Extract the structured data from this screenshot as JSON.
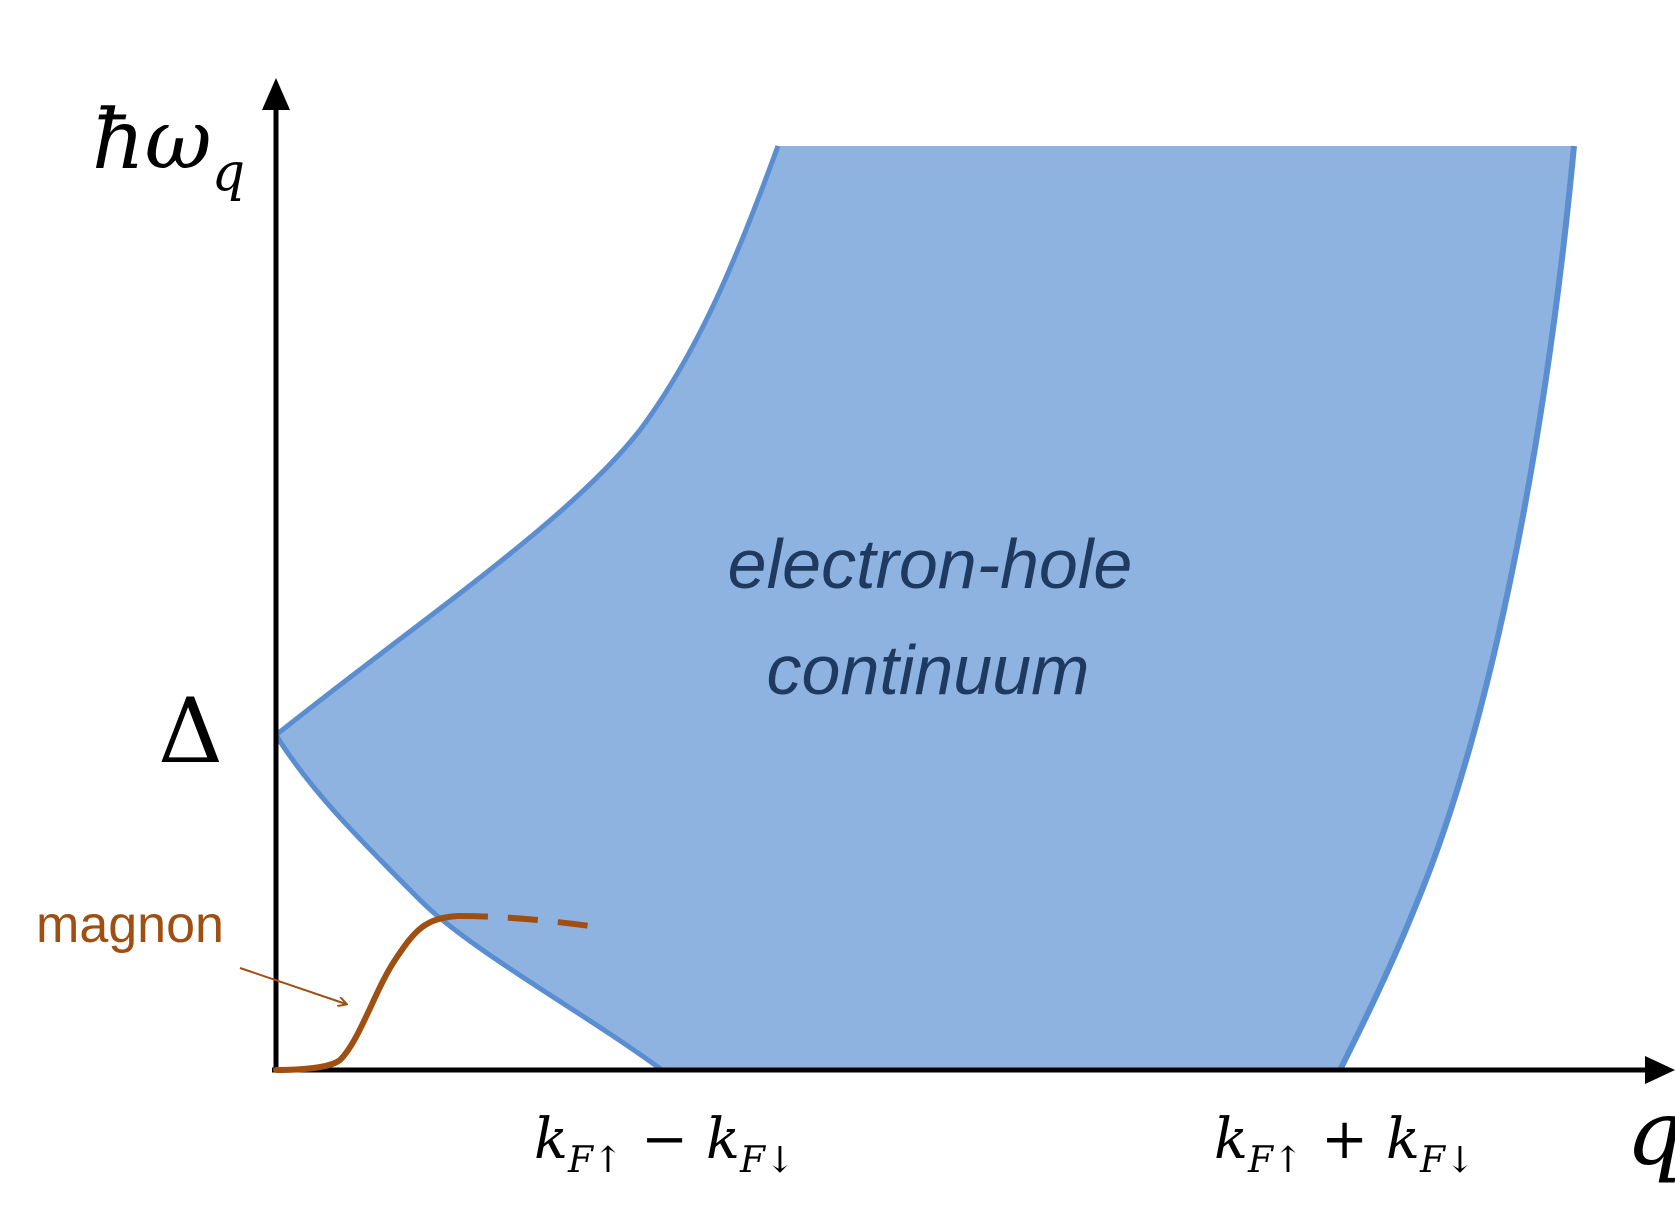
{
  "axes": {
    "y_label": "ħω",
    "y_label_sub": "q",
    "x_label": "q"
  },
  "marks": {
    "delta": "Δ",
    "k_minus": {
      "k1": "k",
      "s1": "F↑",
      "op": "−",
      "k2": "k",
      "s2": "F↓"
    },
    "k_plus": {
      "k1": "k",
      "s1": "F↑",
      "op": "+",
      "k2": "k",
      "s2": "F↓"
    }
  },
  "region": {
    "line1": "electron-hole",
    "line2": "continuum"
  },
  "magnon": {
    "label": "magnon"
  },
  "colors": {
    "region_fill": "#8fb3e0",
    "region_edge": "#5b8ed0",
    "region_text": "#1f3a60",
    "magnon": "#a04f12",
    "axis": "#000000"
  }
}
